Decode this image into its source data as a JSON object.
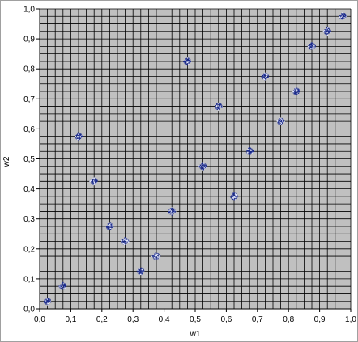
{
  "chart_data": {
    "type": "scatter",
    "title": "",
    "xlabel": "w1",
    "ylabel": "w2",
    "xlim": [
      0,
      1
    ],
    "ylim": [
      0,
      1
    ],
    "x_ticks": [
      "0,0",
      "0,1",
      "0,2",
      "0,3",
      "0,4",
      "0,5",
      "0,6",
      "0,7",
      "0,8",
      "0,9",
      "1,0"
    ],
    "y_ticks": [
      "0,0",
      "0,1",
      "0,2",
      "0,3",
      "0,4",
      "0,5",
      "0,6",
      "0,7",
      "0,8",
      "0,9",
      "1,0"
    ],
    "grid": true,
    "grid_step": 0.025,
    "legend": "none",
    "plot_background": "#c0c0c0",
    "grid_color": "#000000",
    "marker_color": "#1a2a8c",
    "clusters": [
      {
        "x": 0.025,
        "y": 0.025
      },
      {
        "x": 0.075,
        "y": 0.075
      },
      {
        "x": 0.125,
        "y": 0.575
      },
      {
        "x": 0.175,
        "y": 0.425
      },
      {
        "x": 0.225,
        "y": 0.275
      },
      {
        "x": 0.275,
        "y": 0.225
      },
      {
        "x": 0.325,
        "y": 0.125
      },
      {
        "x": 0.375,
        "y": 0.175
      },
      {
        "x": 0.425,
        "y": 0.325
      },
      {
        "x": 0.475,
        "y": 0.825
      },
      {
        "x": 0.525,
        "y": 0.475
      },
      {
        "x": 0.575,
        "y": 0.675
      },
      {
        "x": 0.625,
        "y": 0.375
      },
      {
        "x": 0.675,
        "y": 0.525
      },
      {
        "x": 0.725,
        "y": 0.775
      },
      {
        "x": 0.775,
        "y": 0.625
      },
      {
        "x": 0.825,
        "y": 0.725
      },
      {
        "x": 0.875,
        "y": 0.875
      },
      {
        "x": 0.925,
        "y": 0.925
      },
      {
        "x": 0.975,
        "y": 0.975
      }
    ]
  }
}
